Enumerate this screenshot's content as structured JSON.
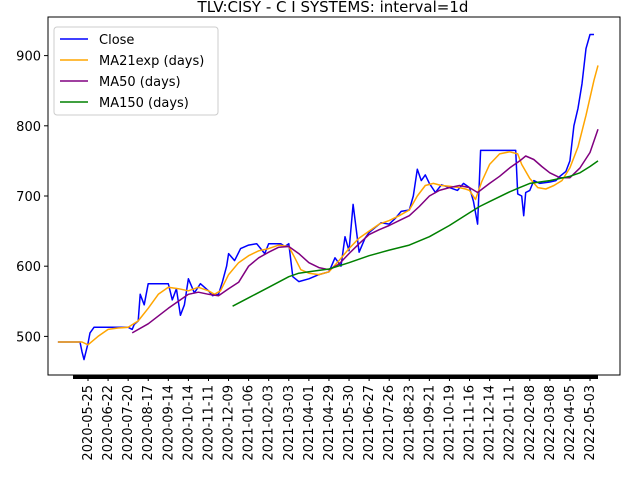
{
  "chart_data": {
    "type": "line",
    "title": "TLV:CISY - C I SYSTEMS: interval=1d",
    "xlabel": "",
    "ylabel": "",
    "x": [
      "2020-05-25",
      "2020-06-22",
      "2020-07-20",
      "2020-08-17",
      "2020-09-14",
      "2020-10-14",
      "2020-11-11",
      "2020-12-09",
      "2021-01-06",
      "2021-02-03",
      "2021-03-03",
      "2021-04-01",
      "2021-04-29",
      "2021-05-30",
      "2021-06-27",
      "2021-07-26",
      "2021-08-23",
      "2021-09-21",
      "2021-10-19",
      "2021-11-16",
      "2021-12-14",
      "2022-01-11",
      "2022-02-08",
      "2022-03-08",
      "2022-04-05",
      "2022-05-03"
    ],
    "ylim": [
      445,
      955
    ],
    "yticks": [
      500,
      600,
      700,
      800,
      900
    ],
    "grid": false,
    "legend_position": "upper-left",
    "series": [
      {
        "name": "Close",
        "color": "#0000ff",
        "points": [
          [
            -1.5,
            492
          ],
          [
            -0.4,
            492
          ],
          [
            -0.3,
            478
          ],
          [
            -0.2,
            467
          ],
          [
            0,
            490
          ],
          [
            0.1,
            505
          ],
          [
            0.3,
            513
          ],
          [
            1,
            513
          ],
          [
            1.5,
            513
          ],
          [
            2,
            513
          ],
          [
            2.2,
            510
          ],
          [
            2.3,
            517
          ],
          [
            2.5,
            522
          ],
          [
            2.6,
            560
          ],
          [
            2.8,
            545
          ],
          [
            3,
            575
          ],
          [
            3.5,
            575
          ],
          [
            4,
            575
          ],
          [
            4.2,
            552
          ],
          [
            4.4,
            568
          ],
          [
            4.6,
            530
          ],
          [
            4.8,
            545
          ],
          [
            5,
            582
          ],
          [
            5.3,
            562
          ],
          [
            5.6,
            575
          ],
          [
            6,
            565
          ],
          [
            6.2,
            558
          ],
          [
            6.5,
            560
          ],
          [
            6.7,
            578
          ],
          [
            6.9,
            600
          ],
          [
            7,
            618
          ],
          [
            7.3,
            608
          ],
          [
            7.6,
            625
          ],
          [
            8,
            630
          ],
          [
            8.4,
            632
          ],
          [
            8.8,
            618
          ],
          [
            9,
            632
          ],
          [
            9.6,
            632
          ],
          [
            9.8,
            628
          ],
          [
            10,
            632
          ],
          [
            10.2,
            585
          ],
          [
            10.5,
            578
          ],
          [
            11,
            582
          ],
          [
            11.5,
            588
          ],
          [
            12,
            592
          ],
          [
            12.3,
            612
          ],
          [
            12.6,
            600
          ],
          [
            12.8,
            642
          ],
          [
            13,
            622
          ],
          [
            13.2,
            688
          ],
          [
            13.5,
            620
          ],
          [
            13.8,
            640
          ],
          [
            14,
            648
          ],
          [
            14.3,
            655
          ],
          [
            14.6,
            662
          ],
          [
            15,
            660
          ],
          [
            15.3,
            668
          ],
          [
            15.6,
            678
          ],
          [
            16,
            680
          ],
          [
            16.2,
            700
          ],
          [
            16.4,
            738
          ],
          [
            16.6,
            722
          ],
          [
            16.8,
            730
          ],
          [
            17,
            718
          ],
          [
            17.3,
            705
          ],
          [
            17.6,
            716
          ],
          [
            18,
            712
          ],
          [
            18.4,
            708
          ],
          [
            18.7,
            718
          ],
          [
            19,
            712
          ],
          [
            19.2,
            692
          ],
          [
            19.4,
            660
          ],
          [
            19.55,
            765
          ],
          [
            20,
            765
          ],
          [
            21,
            765
          ],
          [
            21.3,
            765
          ],
          [
            21.4,
            703
          ],
          [
            21.6,
            700
          ],
          [
            21.7,
            672
          ],
          [
            21.8,
            705
          ],
          [
            22,
            708
          ],
          [
            22.2,
            722
          ],
          [
            22.5,
            718
          ],
          [
            23,
            720
          ],
          [
            23.3,
            722
          ],
          [
            23.5,
            728
          ],
          [
            23.8,
            735
          ],
          [
            24,
            750
          ],
          [
            24.2,
            800
          ],
          [
            24.4,
            825
          ],
          [
            24.6,
            860
          ],
          [
            24.8,
            910
          ],
          [
            25,
            930
          ],
          [
            25.2,
            930
          ]
        ]
      },
      {
        "name": "MA21exp (days)",
        "color": "#ffa500",
        "points": [
          [
            -1.5,
            492
          ],
          [
            -0.3,
            492
          ],
          [
            0,
            488
          ],
          [
            0.5,
            500
          ],
          [
            1,
            510
          ],
          [
            1.5,
            512
          ],
          [
            2,
            513
          ],
          [
            2.5,
            522
          ],
          [
            3,
            540
          ],
          [
            3.5,
            560
          ],
          [
            4,
            570
          ],
          [
            4.5,
            568
          ],
          [
            5,
            565
          ],
          [
            5.5,
            570
          ],
          [
            6,
            565
          ],
          [
            6.3,
            560
          ],
          [
            6.6,
            565
          ],
          [
            7,
            588
          ],
          [
            7.5,
            605
          ],
          [
            8,
            615
          ],
          [
            8.5,
            622
          ],
          [
            9,
            625
          ],
          [
            9.5,
            630
          ],
          [
            10,
            628
          ],
          [
            10.3,
            612
          ],
          [
            10.6,
            595
          ],
          [
            11,
            590
          ],
          [
            11.5,
            588
          ],
          [
            12,
            592
          ],
          [
            12.5,
            608
          ],
          [
            13,
            625
          ],
          [
            13.5,
            640
          ],
          [
            14,
            650
          ],
          [
            14.5,
            660
          ],
          [
            15,
            665
          ],
          [
            15.5,
            672
          ],
          [
            16,
            680
          ],
          [
            16.4,
            700
          ],
          [
            16.8,
            715
          ],
          [
            17.2,
            718
          ],
          [
            17.6,
            715
          ],
          [
            18,
            714
          ],
          [
            18.5,
            712
          ],
          [
            18.8,
            710
          ],
          [
            19,
            708
          ],
          [
            19.3,
            695
          ],
          [
            19.6,
            720
          ],
          [
            20,
            745
          ],
          [
            20.5,
            760
          ],
          [
            21,
            763
          ],
          [
            21.4,
            760
          ],
          [
            21.6,
            745
          ],
          [
            22,
            725
          ],
          [
            22.4,
            712
          ],
          [
            22.8,
            710
          ],
          [
            23.2,
            715
          ],
          [
            23.6,
            722
          ],
          [
            24,
            740
          ],
          [
            24.4,
            770
          ],
          [
            24.8,
            815
          ],
          [
            25.2,
            865
          ],
          [
            25.4,
            886
          ]
        ]
      },
      {
        "name": "MA50 (days)",
        "color": "#800080",
        "points": [
          [
            2.2,
            505
          ],
          [
            3,
            518
          ],
          [
            4,
            540
          ],
          [
            5,
            560
          ],
          [
            5.5,
            563
          ],
          [
            6,
            560
          ],
          [
            6.5,
            558
          ],
          [
            7,
            568
          ],
          [
            7.5,
            577
          ],
          [
            8,
            600
          ],
          [
            8.5,
            612
          ],
          [
            9,
            620
          ],
          [
            9.5,
            627
          ],
          [
            10,
            628
          ],
          [
            10.5,
            618
          ],
          [
            11,
            605
          ],
          [
            11.5,
            598
          ],
          [
            12,
            595
          ],
          [
            12.5,
            603
          ],
          [
            13,
            618
          ],
          [
            13.5,
            632
          ],
          [
            14,
            645
          ],
          [
            14.5,
            652
          ],
          [
            15,
            658
          ],
          [
            15.5,
            665
          ],
          [
            16,
            672
          ],
          [
            16.5,
            685
          ],
          [
            17,
            700
          ],
          [
            17.5,
            708
          ],
          [
            18,
            712
          ],
          [
            18.5,
            715
          ],
          [
            19,
            712
          ],
          [
            19.4,
            705
          ],
          [
            20,
            718
          ],
          [
            20.5,
            728
          ],
          [
            21,
            740
          ],
          [
            21.5,
            750
          ],
          [
            21.8,
            757
          ],
          [
            22.2,
            752
          ],
          [
            22.6,
            742
          ],
          [
            23,
            733
          ],
          [
            23.5,
            726
          ],
          [
            24,
            726
          ],
          [
            24.5,
            740
          ],
          [
            25,
            762
          ],
          [
            25.4,
            795
          ]
        ]
      },
      {
        "name": "MA150 (days)",
        "color": "#008000",
        "points": [
          [
            7.2,
            543
          ],
          [
            8,
            555
          ],
          [
            9,
            570
          ],
          [
            10,
            585
          ],
          [
            10.5,
            590
          ],
          [
            11,
            592
          ],
          [
            12,
            596
          ],
          [
            13,
            605
          ],
          [
            14,
            615
          ],
          [
            15,
            623
          ],
          [
            16,
            630
          ],
          [
            17,
            642
          ],
          [
            18,
            658
          ],
          [
            19,
            676
          ],
          [
            19.5,
            685
          ],
          [
            20,
            692
          ],
          [
            21,
            706
          ],
          [
            21.5,
            712
          ],
          [
            22,
            718
          ],
          [
            23,
            722
          ],
          [
            24,
            728
          ],
          [
            24.5,
            733
          ],
          [
            25,
            742
          ],
          [
            25.4,
            750
          ]
        ]
      }
    ]
  }
}
